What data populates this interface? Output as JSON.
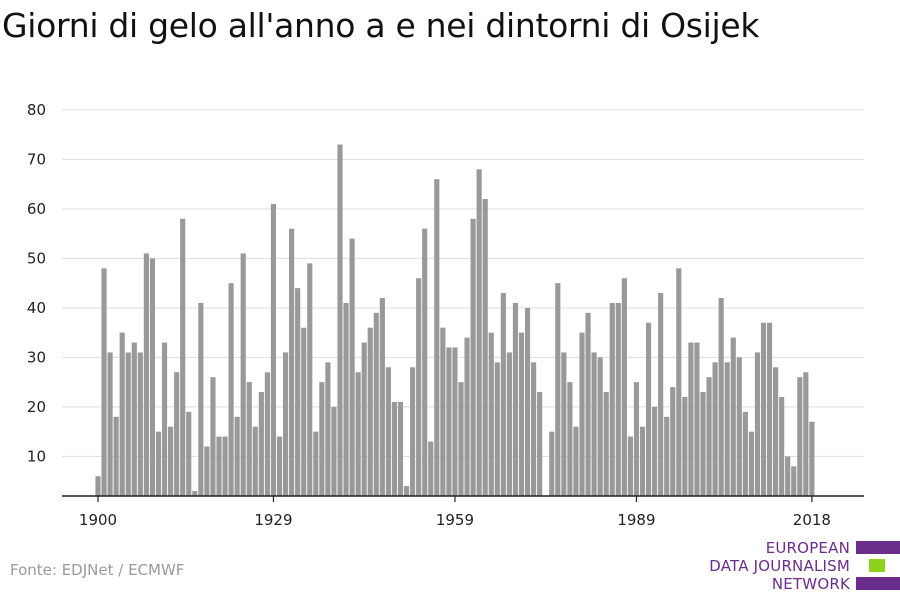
{
  "title": "Giorni di gelo all'anno a e nei dintorni di Osijek",
  "source": "Fonte: EDJNet / ECMWF",
  "logo": {
    "lines": [
      "EUROPEAN",
      "DATA JOURNALISM",
      "NETWORK"
    ],
    "colors": {
      "purple": "#6b2d8c",
      "green": "#8fd11f"
    }
  },
  "colors": {
    "bar": "#999999",
    "grid": "#dddddd",
    "axis": "#222222",
    "tick_text": "#222222"
  },
  "chart_data": {
    "type": "bar",
    "title": "Giorni di gelo all'anno a e nei dintorni di Osijek",
    "xlabel": "",
    "ylabel": "",
    "ylim": [
      2,
      82
    ],
    "yticks": [
      10,
      20,
      30,
      40,
      50,
      60,
      70,
      80
    ],
    "xticks": [
      1900,
      1929,
      1959,
      1989,
      2018
    ],
    "grid": true,
    "x": [
      1900,
      1901,
      1902,
      1903,
      1904,
      1905,
      1906,
      1907,
      1908,
      1909,
      1910,
      1911,
      1912,
      1913,
      1914,
      1915,
      1916,
      1917,
      1918,
      1919,
      1920,
      1921,
      1922,
      1923,
      1924,
      1925,
      1926,
      1927,
      1928,
      1929,
      1930,
      1931,
      1932,
      1933,
      1934,
      1935,
      1936,
      1937,
      1938,
      1939,
      1940,
      1941,
      1942,
      1943,
      1944,
      1945,
      1946,
      1947,
      1948,
      1949,
      1950,
      1951,
      1952,
      1953,
      1954,
      1955,
      1956,
      1957,
      1958,
      1959,
      1960,
      1961,
      1962,
      1963,
      1964,
      1965,
      1966,
      1967,
      1968,
      1969,
      1970,
      1971,
      1972,
      1973,
      1974,
      1975,
      1976,
      1977,
      1978,
      1979,
      1980,
      1981,
      1982,
      1983,
      1984,
      1985,
      1986,
      1987,
      1988,
      1989,
      1990,
      1991,
      1992,
      1993,
      1994,
      1995,
      1996,
      1997,
      1998,
      1999,
      2000,
      2001,
      2002,
      2003,
      2004,
      2005,
      2006,
      2007,
      2008,
      2009,
      2010,
      2011,
      2012,
      2013,
      2014,
      2015,
      2016,
      2017,
      2018
    ],
    "values": [
      6,
      48,
      31,
      18,
      35,
      31,
      33,
      31,
      51,
      50,
      15,
      33,
      16,
      27,
      58,
      19,
      3,
      41,
      12,
      26,
      14,
      14,
      45,
      18,
      51,
      25,
      16,
      23,
      27,
      61,
      14,
      31,
      56,
      44,
      36,
      49,
      15,
      25,
      29,
      20,
      73,
      41,
      54,
      27,
      33,
      36,
      39,
      42,
      28,
      21,
      21,
      4,
      28,
      46,
      56,
      13,
      66,
      36,
      32,
      32,
      25,
      34,
      58,
      68,
      62,
      35,
      29,
      43,
      31,
      41,
      35,
      40,
      29,
      23,
      2,
      15,
      45,
      31,
      25,
      16,
      35,
      39,
      31,
      30,
      23,
      41,
      41,
      46,
      14,
      25,
      16,
      37,
      20,
      43,
      18,
      24,
      48,
      22,
      33,
      33,
      23,
      26,
      29,
      42,
      29,
      34,
      30,
      19,
      15,
      31,
      37,
      37,
      28,
      22,
      10,
      8,
      26,
      27,
      17
    ]
  }
}
